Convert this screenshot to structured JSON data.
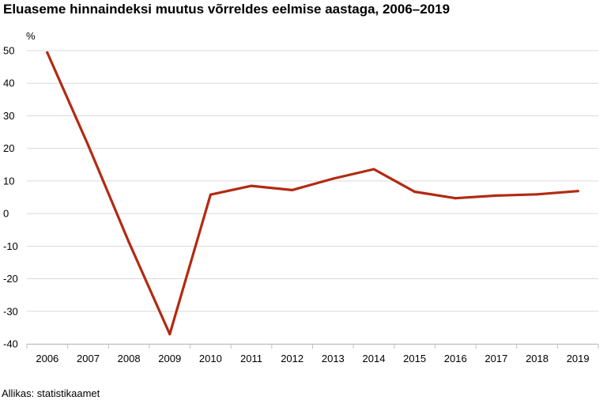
{
  "chart_data": {
    "type": "line",
    "title": "Eluaseme hinnaindeksi muutus võrreldes eelmise aastaga, 2006–2019",
    "ylabel": "%",
    "xlabel": "",
    "source": "Allikas: statistikaamet",
    "categories": [
      "2006",
      "2007",
      "2008",
      "2009",
      "2010",
      "2011",
      "2012",
      "2013",
      "2014",
      "2015",
      "2016",
      "2017",
      "2018",
      "2019"
    ],
    "series": [
      {
        "values": [
          49.4,
          21.0,
          -8.8,
          -37.0,
          5.8,
          8.5,
          7.2,
          10.7,
          13.6,
          6.7,
          4.7,
          5.5,
          5.9,
          6.9
        ],
        "color": "#b22a12"
      }
    ],
    "ylim": [
      -40,
      50
    ],
    "yticks": [
      50,
      40,
      30,
      20,
      10,
      0,
      -10,
      -20,
      -30,
      -40
    ],
    "grid": true,
    "legend": "none"
  }
}
